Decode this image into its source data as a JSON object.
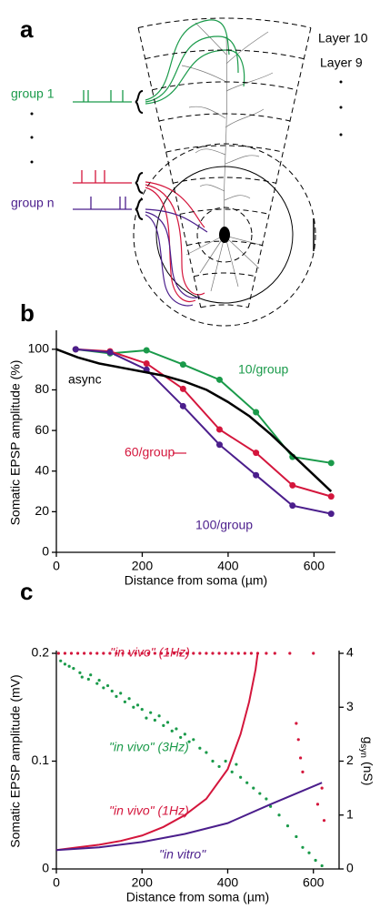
{
  "panel_a": {
    "label": "a",
    "layers": [
      "Layer 10",
      "Layer 9"
    ],
    "groups": [
      "group 1",
      "group n"
    ]
  },
  "chart_data": [
    {
      "type": "line",
      "panel_label": "b",
      "xlabel": "Distance from soma (µm)",
      "ylabel": "Somatic EPSP amplitude (%)",
      "xlim": [
        0,
        650
      ],
      "ylim": [
        0,
        108
      ],
      "xticks": [
        0,
        200,
        400,
        600
      ],
      "yticks": [
        0,
        20,
        40,
        60,
        80,
        100
      ],
      "grid": false,
      "series": [
        {
          "name": "10/group",
          "color": "#1a9a4a",
          "markers": true,
          "x": [
            45,
            125,
            210,
            295,
            380,
            465,
            550,
            640
          ],
          "values": [
            100,
            98,
            99.5,
            92.5,
            85,
            69,
            47,
            44
          ]
        },
        {
          "name": "60/group",
          "color": "#d4163c",
          "markers": true,
          "x": [
            45,
            125,
            210,
            295,
            380,
            465,
            550,
            640
          ],
          "values": [
            100,
            99,
            93,
            80.5,
            60.5,
            49,
            33,
            27.5
          ]
        },
        {
          "name": "100/group",
          "color": "#4b1e8c",
          "markers": true,
          "x": [
            45,
            125,
            210,
            295,
            380,
            465,
            550,
            640
          ],
          "values": [
            100,
            98.5,
            90,
            72,
            53,
            38,
            23,
            19
          ]
        },
        {
          "name": "async",
          "color": "#000000",
          "markers": false,
          "x": [
            0,
            50,
            100,
            150,
            200,
            250,
            300,
            350,
            400,
            450,
            500,
            550,
            600,
            640
          ],
          "values": [
            100,
            96,
            93,
            91,
            89,
            87,
            84,
            80,
            74,
            67,
            58,
            48,
            38,
            30
          ]
        }
      ]
    },
    {
      "type": "scatter",
      "panel_label": "c",
      "xlabel": "Distance from soma (µm)",
      "ylabel": "Somatic EPSP amplitude (mV)",
      "y2label": {
        "symbol": "g",
        "subscript": "syn",
        "unit": "(nS)"
      },
      "xlim": [
        0,
        660
      ],
      "ylim": [
        0,
        0.2
      ],
      "y2lim": [
        0,
        4
      ],
      "xticks": [
        0,
        200,
        400,
        600
      ],
      "yticks": [
        0,
        0.1,
        0.2
      ],
      "y2ticks": [
        0,
        1,
        2,
        3,
        4
      ],
      "grid": false,
      "series": [
        {
          "name": "\"in vivo\" (1Hz)",
          "type": "scatter",
          "color": "#d4163c",
          "x": [
            5,
            20,
            35,
            50,
            65,
            80,
            95,
            110,
            125,
            140,
            155,
            170,
            185,
            200,
            215,
            230,
            245,
            260,
            275,
            290,
            305,
            320,
            335,
            350,
            365,
            380,
            395,
            410,
            425,
            440,
            455,
            470,
            490,
            510,
            545,
            600,
            560,
            565,
            570,
            575,
            620,
            610,
            625
          ],
          "values": [
            0.2,
            0.2,
            0.2,
            0.2,
            0.2,
            0.2,
            0.2,
            0.2,
            0.2,
            0.2,
            0.2,
            0.2,
            0.2,
            0.2,
            0.2,
            0.2,
            0.2,
            0.2,
            0.2,
            0.2,
            0.2,
            0.2,
            0.2,
            0.2,
            0.2,
            0.2,
            0.2,
            0.2,
            0.2,
            0.2,
            0.2,
            0.2,
            0.2,
            0.2,
            0.2,
            0.2,
            0.135,
            0.12,
            0.103,
            0.09,
            0.075,
            0.06,
            0.045
          ]
        },
        {
          "name": "\"in vivo\" (3Hz)",
          "type": "scatter",
          "color": "#1a9a4a",
          "x": [
            10,
            20,
            30,
            40,
            55,
            60,
            75,
            80,
            95,
            100,
            110,
            120,
            130,
            140,
            150,
            160,
            170,
            180,
            190,
            200,
            210,
            220,
            230,
            240,
            250,
            260,
            270,
            280,
            290,
            300,
            310,
            320,
            335,
            350,
            365,
            380,
            395,
            410,
            420,
            430,
            445,
            460,
            475,
            490,
            500,
            520,
            540,
            560,
            575,
            590,
            605,
            620
          ],
          "values": [
            0.193,
            0.19,
            0.188,
            0.186,
            0.182,
            0.178,
            0.176,
            0.18,
            0.172,
            0.175,
            0.168,
            0.17,
            0.165,
            0.16,
            0.163,
            0.155,
            0.158,
            0.15,
            0.152,
            0.148,
            0.14,
            0.145,
            0.138,
            0.142,
            0.133,
            0.136,
            0.128,
            0.13,
            0.122,
            0.125,
            0.118,
            0.12,
            0.112,
            0.108,
            0.1,
            0.095,
            0.1,
            0.09,
            0.097,
            0.085,
            0.08,
            0.075,
            0.07,
            0.065,
            0.058,
            0.05,
            0.04,
            0.03,
            0.02,
            0.015,
            0.008,
            0.003
          ]
        },
        {
          "name": "\"in vivo\" (1Hz)",
          "type": "line",
          "axis": "y2",
          "color": "#d4163c",
          "x": [
            0,
            50,
            100,
            150,
            200,
            250,
            300,
            350,
            400,
            430,
            450,
            465,
            470
          ],
          "values": [
            0.35,
            0.4,
            0.45,
            0.52,
            0.62,
            0.78,
            1.0,
            1.3,
            1.85,
            2.5,
            3.1,
            3.7,
            4.0
          ]
        },
        {
          "name": "\"in vitro\"",
          "type": "line",
          "axis": "y2",
          "color": "#4b1e8c",
          "x": [
            0,
            100,
            200,
            300,
            400,
            500,
            620
          ],
          "values": [
            0.35,
            0.4,
            0.5,
            0.65,
            0.85,
            1.2,
            1.6
          ]
        }
      ]
    }
  ]
}
